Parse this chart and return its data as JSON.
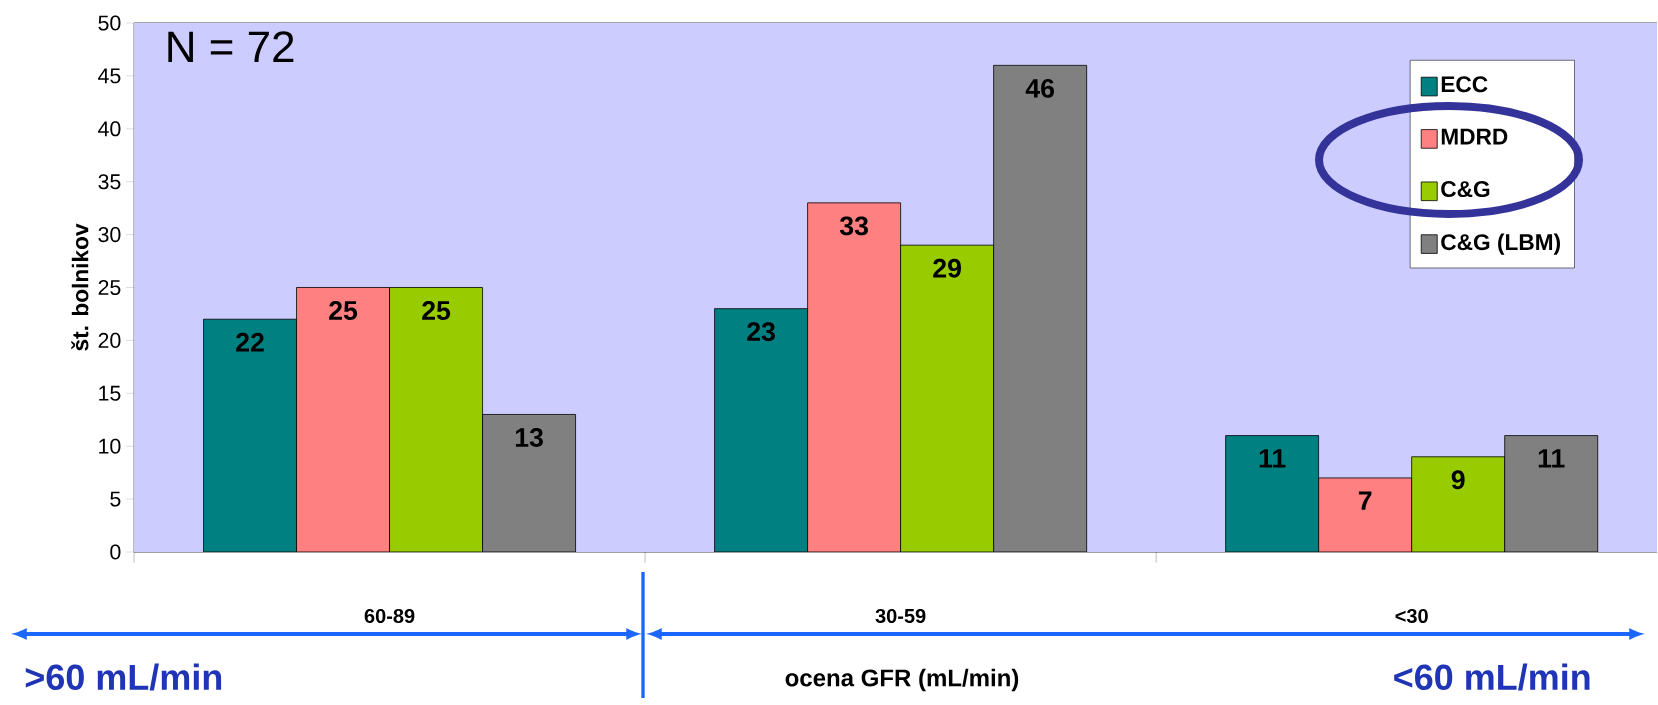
{
  "chart_data": {
    "type": "bar",
    "xlabel": "ocena GFR (mL/min)",
    "ylabel": "št. bolnikov",
    "categories": [
      "60-89",
      "30-59",
      "<30"
    ],
    "series": [
      {
        "name": "ECC",
        "color": "#008080",
        "values": [
          22,
          23,
          11
        ]
      },
      {
        "name": "MDRD",
        "color": "#ff8080",
        "values": [
          25,
          33,
          7
        ]
      },
      {
        "name": "C&G",
        "color": "#99cc00",
        "values": [
          25,
          29,
          9
        ]
      },
      {
        "name": "C&G (LBM)",
        "color": "#808080",
        "values": [
          13,
          46,
          11
        ]
      }
    ],
    "ylim": [
      0,
      50
    ],
    "yticks": [
      0,
      5,
      10,
      15,
      20,
      25,
      30,
      35,
      40,
      45,
      50
    ],
    "grid": "y",
    "legend": "top right",
    "data_labels": true,
    "annotations": [
      "N = 72",
      ">60 mL/min",
      "<60 mL/min"
    ]
  }
}
